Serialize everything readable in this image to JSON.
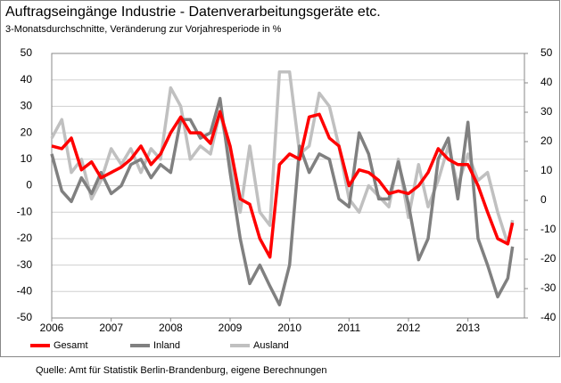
{
  "chart_data": {
    "type": "line",
    "title": "Auftragseingänge Industrie - Datenverarbeitungsgeräte etc.",
    "subtitle": "3-Monatsdurchschnitte, Veränderung zur Vorjahresperiode in %",
    "source": "Quelle: Amt für Statistik Berlin-Brandenburg, eigene Berechnungen",
    "x": [
      2006,
      2006.17,
      2006.33,
      2006.5,
      2006.67,
      2006.83,
      2007,
      2007.17,
      2007.33,
      2007.5,
      2007.67,
      2007.83,
      2008,
      2008.17,
      2008.33,
      2008.5,
      2008.67,
      2008.83,
      2009,
      2009.17,
      2009.33,
      2009.5,
      2009.67,
      2009.83,
      2010,
      2010.17,
      2010.33,
      2010.5,
      2010.67,
      2010.83,
      2011,
      2011.17,
      2011.33,
      2011.5,
      2011.67,
      2011.83,
      2012,
      2012.17,
      2012.33,
      2012.5,
      2012.67,
      2012.83,
      2013,
      2013.17,
      2013.33,
      2013.5,
      2013.67,
      2013.75
    ],
    "series": [
      {
        "name": "Gesamt",
        "color": "#ff0000",
        "values": [
          15,
          14,
          18,
          6,
          9,
          3,
          5,
          7,
          10,
          15,
          8,
          12,
          20,
          26,
          20,
          20,
          16,
          28,
          15,
          -5,
          -7,
          -20,
          -27,
          8,
          12,
          10,
          26,
          27,
          18,
          15,
          0,
          6,
          5,
          2,
          -3,
          -2,
          -3,
          0,
          5,
          14,
          10,
          8,
          8,
          0,
          -10,
          -20,
          -22,
          -14
        ]
      },
      {
        "name": "Inland",
        "color": "#808080",
        "values": [
          12,
          -2,
          -6,
          3,
          -3,
          5,
          -3,
          0,
          8,
          10,
          3,
          8,
          5,
          25,
          25,
          18,
          20,
          33,
          5,
          -20,
          -37,
          -30,
          -38,
          -45,
          -30,
          15,
          5,
          12,
          10,
          -5,
          -8,
          20,
          12,
          -5,
          -5,
          9,
          -7,
          -28,
          -20,
          10,
          18,
          -5,
          24,
          -20,
          -30,
          -42,
          -35,
          -23
        ]
      },
      {
        "name": "Ausland",
        "color": "#c0c0c0",
        "values": [
          18,
          25,
          5,
          10,
          -5,
          2,
          14,
          8,
          14,
          5,
          14,
          10,
          37,
          30,
          10,
          15,
          12,
          28,
          10,
          -10,
          15,
          -10,
          -15,
          43,
          43,
          12,
          15,
          35,
          30,
          15,
          -5,
          -10,
          0,
          -4,
          -8,
          10,
          -12,
          8,
          -8,
          2,
          15,
          0,
          12,
          2,
          5,
          -10,
          -22,
          -13
        ]
      }
    ],
    "xlim": [
      2006,
      2013.95
    ],
    "xticks": [
      2006,
      2007,
      2008,
      2009,
      2010,
      2011,
      2012,
      2013
    ],
    "ylim": [
      -50,
      50
    ],
    "yticks": [
      -50,
      -40,
      -30,
      -20,
      -10,
      0,
      10,
      20,
      30,
      40,
      50
    ],
    "y2lim": [
      -40,
      50
    ],
    "y2ticks": [
      -40,
      -30,
      -20,
      -10,
      0,
      10,
      20,
      30,
      40,
      50
    ],
    "grid": true,
    "legend": "bottom"
  }
}
